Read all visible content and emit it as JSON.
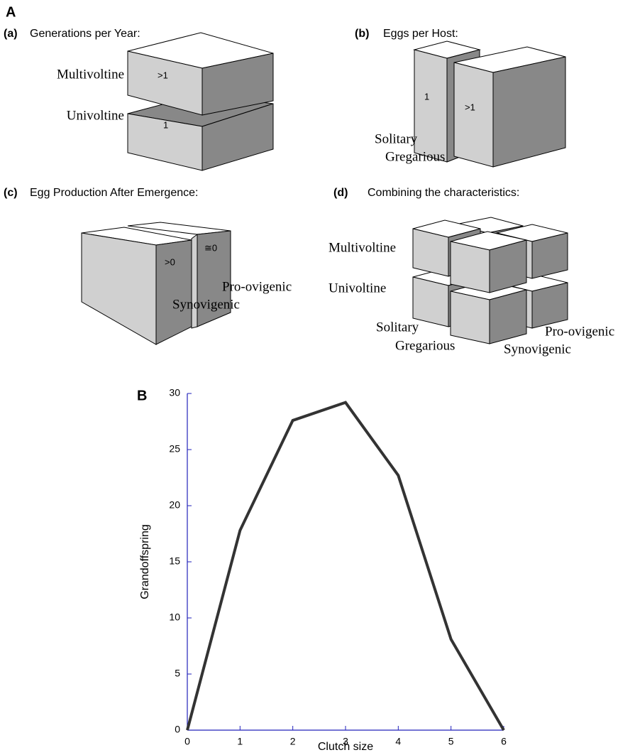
{
  "panel_a": {
    "label": "A",
    "a": {
      "label": "(a)",
      "title": "Generations per Year:",
      "row_1": "Multivoltine",
      "row_2": "Univoltine",
      "value_1": ">1",
      "value_2": "1"
    },
    "b": {
      "label": "(b)",
      "title": "Eggs per Host:",
      "value_1": "1",
      "value_2": ">1",
      "row_1": "Solitary",
      "row_2": "Gregarious"
    },
    "c": {
      "label": "(c)",
      "title": "Egg Production After Emergence:",
      "value_1": ">0",
      "value_2": "≅0",
      "row_1": "Pro-ovigenic",
      "row_2": "Synovigenic"
    },
    "d": {
      "label": "(d)",
      "title": "Combining the characteristics:",
      "labels": [
        "Multivoltine",
        "Univoltine",
        "Solitary",
        "Gregarious",
        "Pro-ovigenic",
        "Synovigenic"
      ]
    }
  },
  "chart_data": {
    "type": "line",
    "panel_label": "B",
    "x_label": "Clutch size",
    "y_label": "Grandoffspring",
    "x": [
      0,
      1,
      2,
      3,
      4,
      5,
      6
    ],
    "series": [
      {
        "name": "Grandoffspring",
        "color": "#333333",
        "values": [
          0,
          17.8,
          27.6,
          29.2,
          22.7,
          8.1,
          0
        ]
      }
    ],
    "xlim": [
      0,
      6
    ],
    "ylim": [
      0,
      30
    ],
    "xticks": [
      0,
      1,
      2,
      3,
      4,
      5,
      6
    ],
    "yticks": [
      0,
      5,
      10,
      15,
      20,
      25,
      30
    ],
    "axis_color": "#2222bb",
    "grid": false
  }
}
